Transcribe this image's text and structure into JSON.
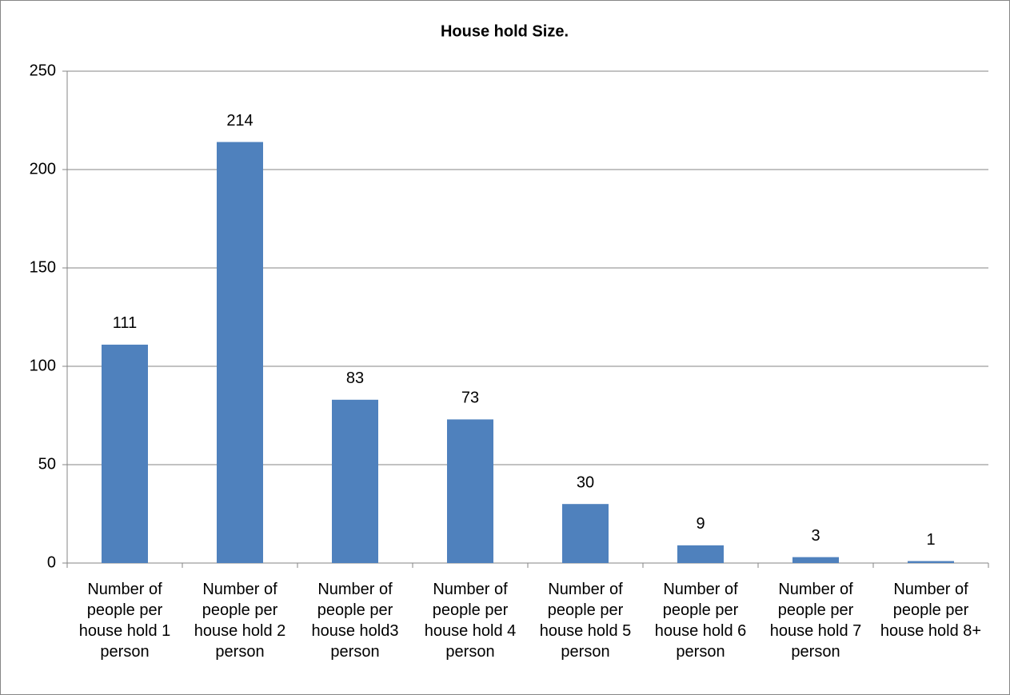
{
  "chart_data": {
    "type": "bar",
    "title": "House hold Size.",
    "categories": [
      "Number of people per house hold 1 person",
      "Number of people per house hold 2 person",
      "Number of people per house hold3 person",
      "Number of people per house hold 4 person",
      "Number of people per house hold 5 person",
      "Number of people per house hold 6 person",
      "Number of people per house hold 7 person",
      "Number of people per house hold 8+"
    ],
    "values": [
      111,
      214,
      83,
      73,
      30,
      9,
      3,
      1
    ],
    "color": "#4f81bd",
    "ylim": [
      0,
      250
    ],
    "yticks": [
      0,
      50,
      100,
      150,
      200,
      250
    ],
    "grid": true
  }
}
